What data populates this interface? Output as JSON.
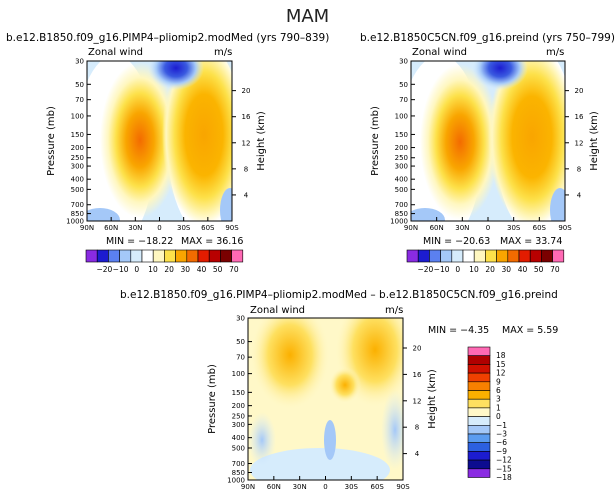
{
  "figure": {
    "title": "MAM"
  },
  "chart_data": [
    {
      "type": "heatmap",
      "title": "b.e12.B1850.f09_g16.PIMP4–pliomip2.modMed (yrs 790–839)",
      "variable": "Zonal wind",
      "units": "m/s",
      "xlabel": "",
      "ylabel": "Pressure (mb)",
      "ylabel_right": "Height (km)",
      "x_ticks": [
        "90N",
        "60N",
        "30N",
        "0",
        "30S",
        "60S",
        "90S"
      ],
      "y_ticks": [
        30,
        50,
        70,
        100,
        150,
        200,
        250,
        300,
        400,
        500,
        700,
        850,
        1000
      ],
      "y_range_mb": [
        1000,
        30
      ],
      "height_ticks_km": [
        4,
        8,
        12,
        16,
        20
      ],
      "min_label": "MIN = −18.22",
      "max_label": "MAX = 36.16",
      "min": -18.22,
      "max": 36.16,
      "levels": [
        -20,
        -10,
        0,
        10,
        20,
        30,
        40,
        50,
        70
      ],
      "level_labels": [
        "−20",
        "−10",
        "0",
        "10",
        "20",
        "30",
        "40",
        "50",
        "70"
      ]
    },
    {
      "type": "heatmap",
      "title": "b.e12.B1850C5CN.f09_g16.preind (yrs 750–799)",
      "variable": "Zonal wind",
      "units": "m/s",
      "ylabel": "Pressure (mb)",
      "ylabel_right": "Height (km)",
      "x_ticks": [
        "90N",
        "60N",
        "30N",
        "0",
        "30S",
        "60S",
        "90S"
      ],
      "y_ticks": [
        30,
        50,
        70,
        100,
        150,
        200,
        250,
        300,
        400,
        500,
        700,
        850,
        1000
      ],
      "height_ticks_km": [
        4,
        8,
        12,
        16,
        20
      ],
      "min_label": "MIN = −20.63",
      "max_label": "MAX = 33.74",
      "min": -20.63,
      "max": 33.74,
      "levels": [
        -20,
        -10,
        0,
        10,
        20,
        30,
        40,
        50,
        70
      ],
      "level_labels": [
        "−20",
        "−10",
        "0",
        "10",
        "20",
        "30",
        "40",
        "50",
        "70"
      ]
    },
    {
      "type": "heatmap",
      "title": "b.e12.B1850.f09_g16.PIMP4–pliomip2.modMed – b.e12.B1850C5CN.f09_g16.preind",
      "variable": "Zonal wind",
      "units": "m/s",
      "ylabel": "Pressure (mb)",
      "ylabel_right": "Height (km)",
      "x_ticks": [
        "90N",
        "60N",
        "30N",
        "0",
        "30S",
        "60S",
        "90S"
      ],
      "y_ticks": [
        30,
        50,
        70,
        100,
        150,
        200,
        250,
        300,
        400,
        500,
        700,
        850,
        1000
      ],
      "height_ticks_km": [
        4,
        8,
        12,
        16,
        20
      ],
      "min_label": "MIN = −4.35",
      "max_label": "MAX = 5.59",
      "min": -4.35,
      "max": 5.59,
      "levels": [
        -18,
        -15,
        -12,
        -9,
        -6,
        -3,
        -1,
        0,
        1,
        3,
        6,
        9,
        12,
        15,
        18
      ],
      "level_labels": [
        "18",
        "15",
        "12",
        "9",
        "6",
        "3",
        "1",
        "0",
        "−1",
        "−3",
        "−6",
        "−9",
        "−12",
        "−15",
        "−18"
      ]
    }
  ],
  "colors": {
    "abs_scale": [
      "#8a2be2",
      "#1c1cd0",
      "#5b80f0",
      "#a4c8f8",
      "#d6ecfc",
      "#ffffff",
      "#fff7c0",
      "#fde14a",
      "#f9a500",
      "#f36b00",
      "#e21c00",
      "#b80000",
      "#7a0000",
      "#ff69b4"
    ],
    "diff_scale": [
      "#ff69b4",
      "#b00000",
      "#d01000",
      "#f04000",
      "#f88000",
      "#fbb000",
      "#fee060",
      "#fff8c8",
      "#d6ecfc",
      "#a4c8f8",
      "#5b9cf0",
      "#2c60e0",
      "#1c1cd0",
      "#0c0c90",
      "#8a2be2"
    ]
  }
}
